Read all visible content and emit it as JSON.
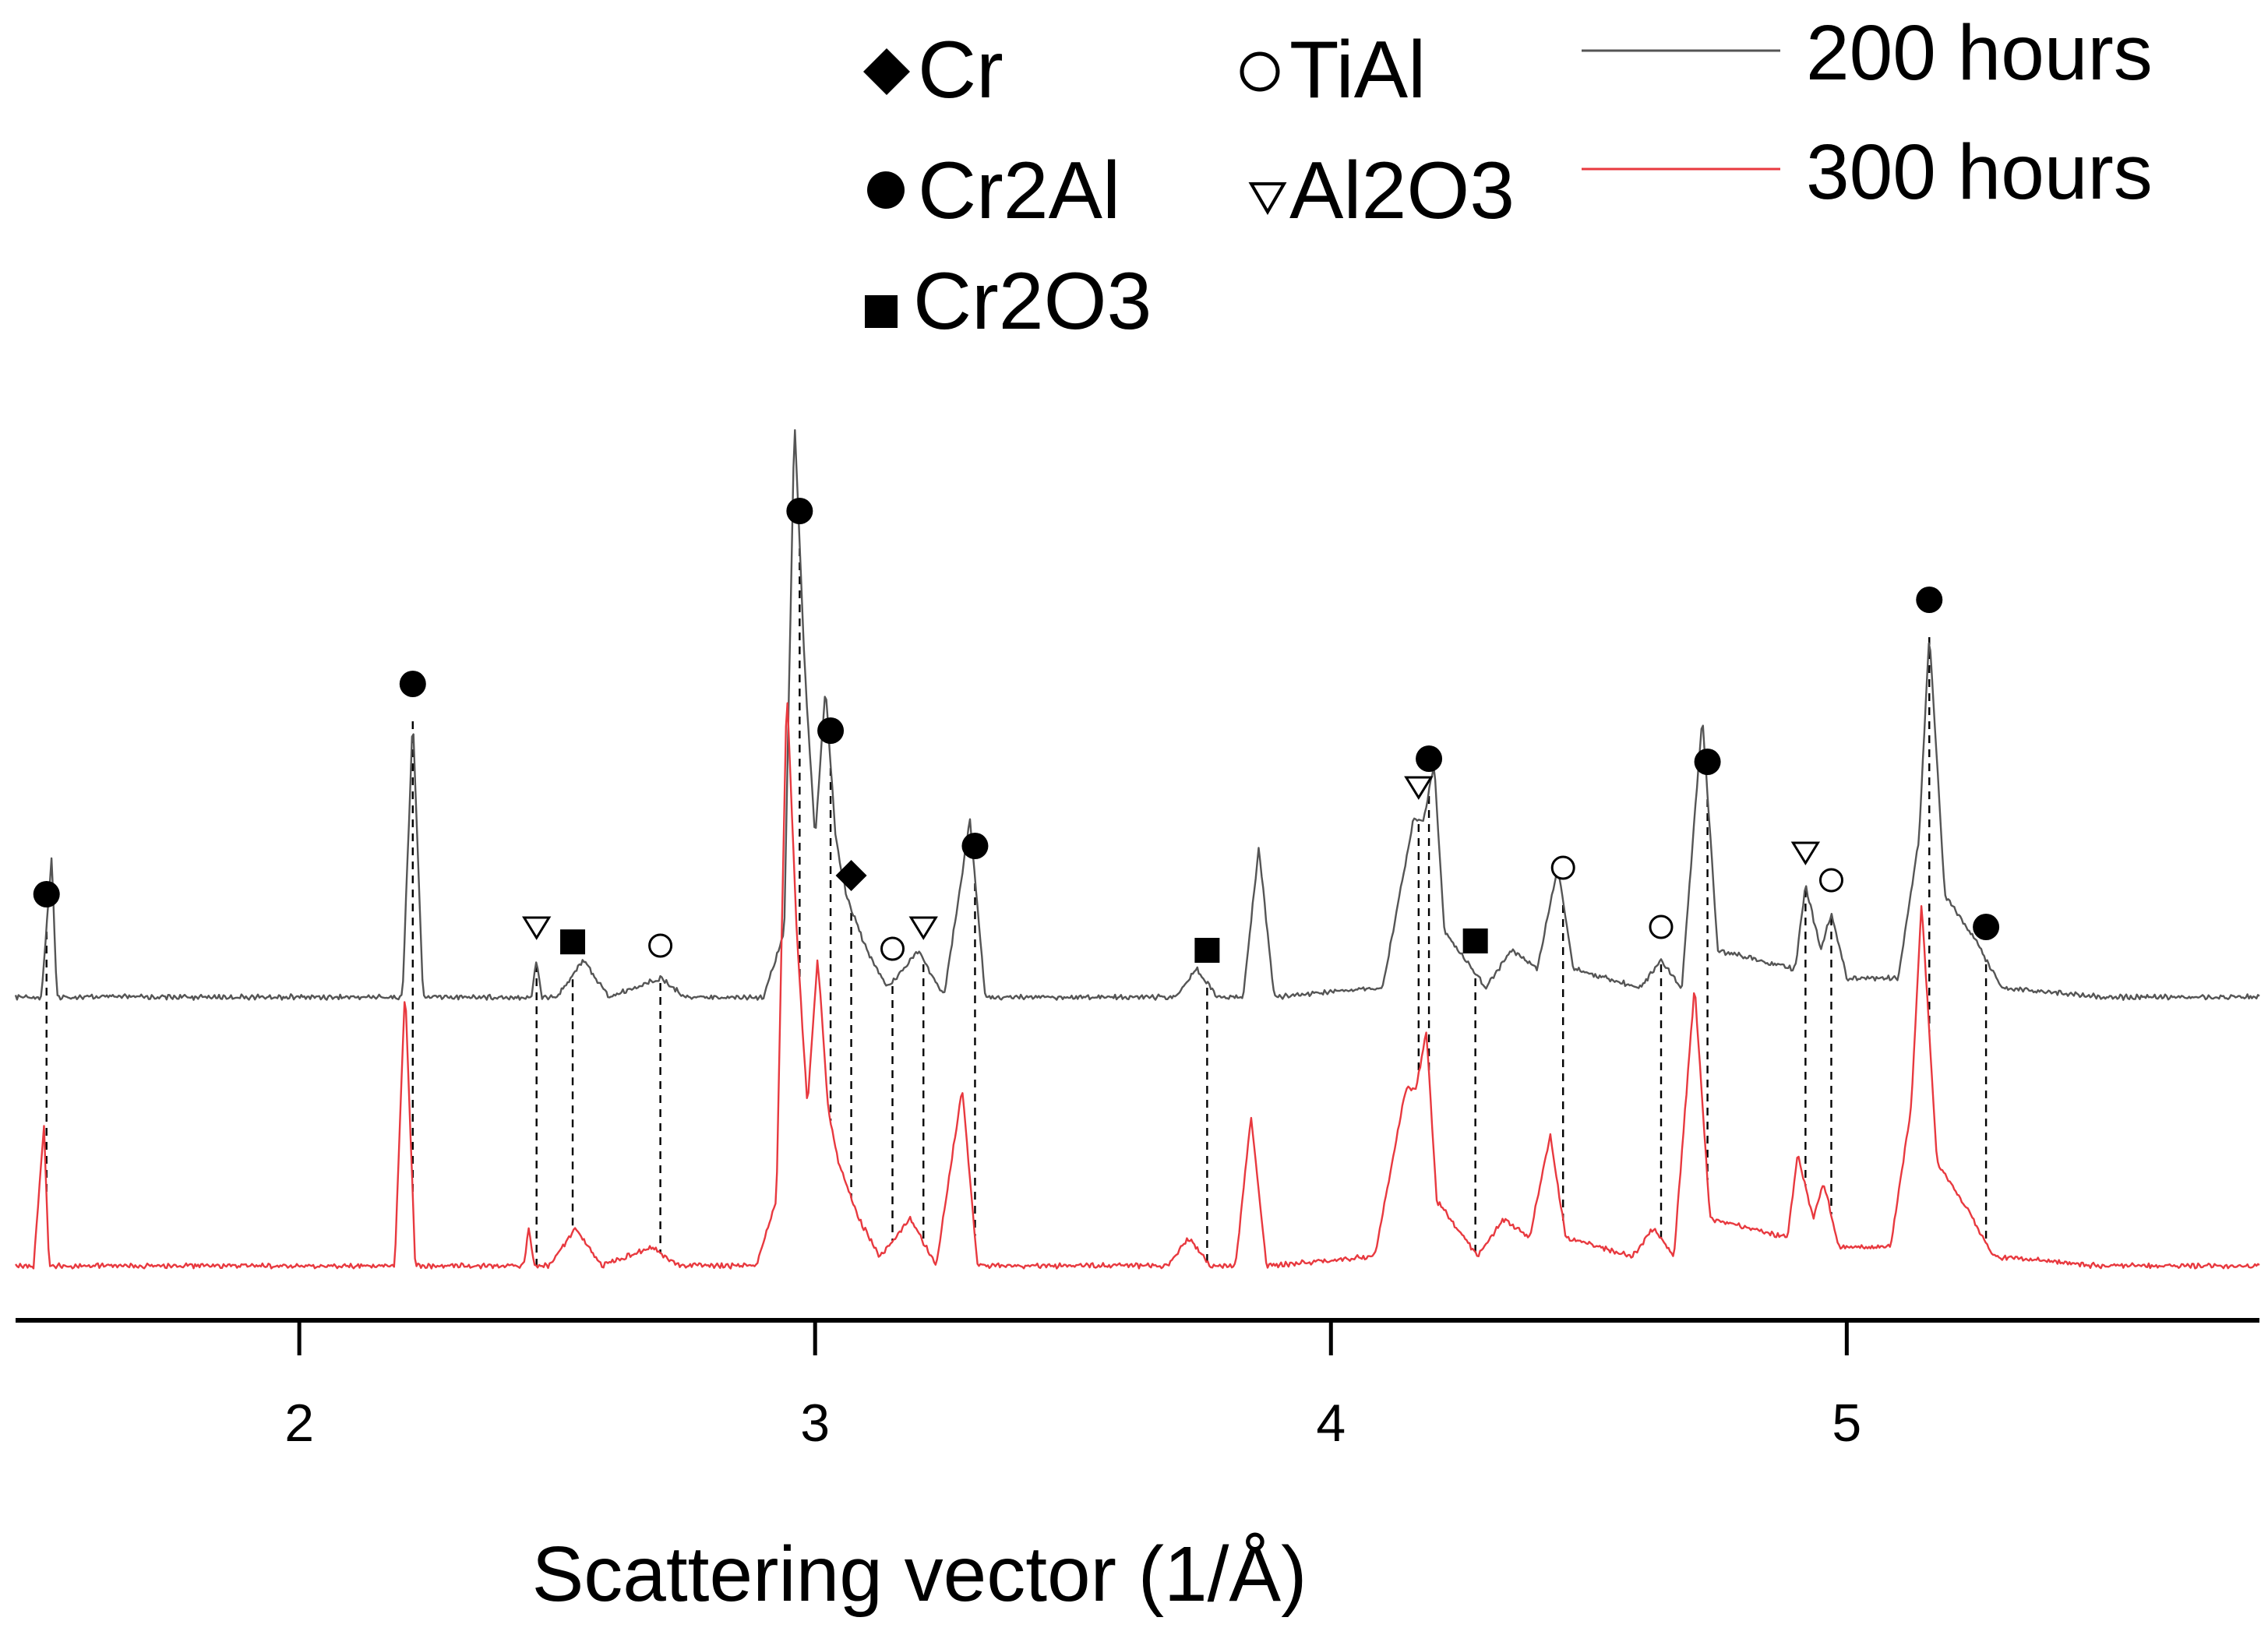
{
  "chart_data": {
    "type": "line",
    "title": "",
    "xlabel": "Scattering vector (1/Å)",
    "ylabel": "",
    "xlim": [
      1.45,
      5.8
    ],
    "xticks": [
      {
        "value": 2,
        "label": "2"
      },
      {
        "value": 3,
        "label": "3"
      },
      {
        "value": 4,
        "label": "4"
      },
      {
        "value": 5,
        "label": "5"
      }
    ],
    "y_axis_visible": false,
    "legend": {
      "placement": "top-right",
      "entries": [
        {
          "name": "200 hours",
          "color": "#555555"
        },
        {
          "name": "300 hours",
          "color": "#e8393f"
        }
      ]
    },
    "phase_legend": {
      "placement": "top-center",
      "entries": [
        {
          "symbol": "diamond",
          "symbol_name": "diamond-marker",
          "label": "Cr"
        },
        {
          "symbol": "circle-filled",
          "symbol_name": "filled-circle-marker",
          "label": "Cr2Al"
        },
        {
          "symbol": "square",
          "symbol_name": "square-marker",
          "label": "Cr2O3"
        },
        {
          "symbol": "circle-open",
          "symbol_name": "open-circle-marker",
          "label": "TiAl"
        },
        {
          "symbol": "triangle-down-open",
          "symbol_name": "open-triangle-marker",
          "label": "Al2O3"
        }
      ]
    },
    "series": [
      {
        "name": "200 hours",
        "color": "#555555",
        "baseline": 5,
        "points": [
          [
            1.45,
            5
          ],
          [
            1.5,
            5
          ],
          [
            1.52,
            20
          ],
          [
            1.53,
            5
          ],
          [
            1.6,
            5
          ],
          [
            2.1,
            5
          ],
          [
            2.2,
            5
          ],
          [
            2.22,
            35
          ],
          [
            2.24,
            5
          ],
          [
            2.4,
            5
          ],
          [
            2.45,
            5
          ],
          [
            2.46,
            9
          ],
          [
            2.47,
            5
          ],
          [
            2.5,
            5
          ],
          [
            2.55,
            9
          ],
          [
            2.6,
            5
          ],
          [
            2.7,
            7
          ],
          [
            2.75,
            5
          ],
          [
            2.9,
            5
          ],
          [
            2.94,
            12
          ],
          [
            2.96,
            67
          ],
          [
            2.98,
            40
          ],
          [
            3.0,
            22
          ],
          [
            3.02,
            38
          ],
          [
            3.04,
            22
          ],
          [
            3.06,
            16
          ],
          [
            3.1,
            10
          ],
          [
            3.14,
            6
          ],
          [
            3.2,
            10
          ],
          [
            3.25,
            5
          ],
          [
            3.3,
            24
          ],
          [
            3.33,
            5
          ],
          [
            3.7,
            5
          ],
          [
            3.74,
            8
          ],
          [
            3.78,
            5
          ],
          [
            3.83,
            5
          ],
          [
            3.86,
            21
          ],
          [
            3.89,
            5
          ],
          [
            4.1,
            6
          ],
          [
            4.16,
            24
          ],
          [
            4.18,
            24
          ],
          [
            4.2,
            30
          ],
          [
            4.22,
            12
          ],
          [
            4.3,
            6
          ],
          [
            4.35,
            10
          ],
          [
            4.4,
            8
          ],
          [
            4.44,
            19
          ],
          [
            4.47,
            8
          ],
          [
            4.6,
            6
          ],
          [
            4.64,
            9
          ],
          [
            4.68,
            6
          ],
          [
            4.72,
            35
          ],
          [
            4.75,
            10
          ],
          [
            4.9,
            8
          ],
          [
            4.92,
            17
          ],
          [
            4.95,
            10
          ],
          [
            4.97,
            14
          ],
          [
            5.0,
            7
          ],
          [
            5.1,
            7
          ],
          [
            5.14,
            22
          ],
          [
            5.16,
            44
          ],
          [
            5.19,
            16
          ],
          [
            5.25,
            11
          ],
          [
            5.3,
            6
          ],
          [
            5.5,
            5
          ],
          [
            5.6,
            5
          ],
          [
            5.8,
            5
          ]
        ]
      },
      {
        "name": "300 hours",
        "color": "#e8393f",
        "baseline": 5,
        "points": [
          [
            1.45,
            5
          ],
          [
            1.5,
            5
          ],
          [
            1.52,
            20
          ],
          [
            1.53,
            5
          ],
          [
            1.6,
            5
          ],
          [
            2.1,
            5
          ],
          [
            2.2,
            5
          ],
          [
            2.22,
            35
          ],
          [
            2.24,
            5
          ],
          [
            2.4,
            5
          ],
          [
            2.45,
            5
          ],
          [
            2.46,
            9
          ],
          [
            2.47,
            5
          ],
          [
            2.5,
            5
          ],
          [
            2.55,
            9
          ],
          [
            2.6,
            5
          ],
          [
            2.7,
            7
          ],
          [
            2.75,
            5
          ],
          [
            2.9,
            5
          ],
          [
            2.94,
            12
          ],
          [
            2.96,
            67
          ],
          [
            2.98,
            40
          ],
          [
            3.0,
            22
          ],
          [
            3.02,
            38
          ],
          [
            3.04,
            22
          ],
          [
            3.06,
            16
          ],
          [
            3.1,
            10
          ],
          [
            3.14,
            6
          ],
          [
            3.2,
            10
          ],
          [
            3.25,
            5
          ],
          [
            3.3,
            24
          ],
          [
            3.33,
            5
          ],
          [
            3.7,
            5
          ],
          [
            3.74,
            8
          ],
          [
            3.78,
            5
          ],
          [
            3.83,
            5
          ],
          [
            3.86,
            21
          ],
          [
            3.89,
            5
          ],
          [
            4.1,
            6
          ],
          [
            4.16,
            24
          ],
          [
            4.18,
            24
          ],
          [
            4.2,
            30
          ],
          [
            4.22,
            12
          ],
          [
            4.3,
            6
          ],
          [
            4.35,
            10
          ],
          [
            4.4,
            8
          ],
          [
            4.44,
            19
          ],
          [
            4.47,
            8
          ],
          [
            4.6,
            6
          ],
          [
            4.64,
            9
          ],
          [
            4.68,
            6
          ],
          [
            4.72,
            35
          ],
          [
            4.75,
            10
          ],
          [
            4.9,
            8
          ],
          [
            4.92,
            17
          ],
          [
            4.95,
            10
          ],
          [
            4.97,
            14
          ],
          [
            5.0,
            7
          ],
          [
            5.1,
            7
          ],
          [
            5.14,
            22
          ],
          [
            5.16,
            44
          ],
          [
            5.19,
            16
          ],
          [
            5.25,
            11
          ],
          [
            5.3,
            6
          ],
          [
            5.5,
            5
          ],
          [
            5.6,
            5
          ],
          [
            5.8,
            5
          ]
        ]
      }
    ],
    "peak_annotations": [
      {
        "x": 1.51,
        "phase": "Cr2Al",
        "symbol": "circle-filled",
        "series_height": 20
      },
      {
        "x": 2.22,
        "phase": "Cr2Al",
        "symbol": "circle-filled",
        "series_height": 35
      },
      {
        "x": 2.46,
        "phase": "Al2O3",
        "symbol": "triangle-down-open",
        "series_height": 9
      },
      {
        "x": 2.53,
        "phase": "Cr2O3",
        "symbol": "square",
        "series_height": 9
      },
      {
        "x": 2.7,
        "phase": "TiAl",
        "symbol": "circle-open",
        "series_height": 7
      },
      {
        "x": 2.97,
        "phase": "Cr2Al",
        "symbol": "circle-filled",
        "series_height": 67
      },
      {
        "x": 3.03,
        "phase": "Cr2Al",
        "symbol": "circle-filled",
        "series_height": 38
      },
      {
        "x": 3.07,
        "phase": "Cr",
        "symbol": "diamond",
        "series_height": 16
      },
      {
        "x": 3.15,
        "phase": "TiAl",
        "symbol": "circle-open",
        "series_height": 6
      },
      {
        "x": 3.21,
        "phase": "Al2O3",
        "symbol": "triangle-down-open",
        "series_height": 10
      },
      {
        "x": 3.31,
        "phase": "Cr2Al",
        "symbol": "circle-filled",
        "series_height": 24
      },
      {
        "x": 3.76,
        "phase": "Cr2O3",
        "symbol": "square",
        "series_height": 8
      },
      {
        "x": 4.17,
        "phase": "Al2O3",
        "symbol": "triangle-down-open",
        "series_height": 24
      },
      {
        "x": 4.19,
        "phase": "Cr2Al",
        "symbol": "circle-filled",
        "series_height": 30
      },
      {
        "x": 4.28,
        "phase": "Cr2O3",
        "symbol": "square",
        "series_height": 6
      },
      {
        "x": 4.45,
        "phase": "TiAl",
        "symbol": "circle-open",
        "series_height": 19
      },
      {
        "x": 4.64,
        "phase": "TiAl",
        "symbol": "circle-open",
        "series_height": 9
      },
      {
        "x": 4.73,
        "phase": "Cr2Al",
        "symbol": "circle-filled",
        "series_height": 35
      },
      {
        "x": 4.92,
        "phase": "Al2O3",
        "symbol": "triangle-down-open",
        "series_height": 17
      },
      {
        "x": 4.97,
        "phase": "TiAl",
        "symbol": "circle-open",
        "series_height": 14
      },
      {
        "x": 5.16,
        "phase": "Cr2Al",
        "symbol": "circle-filled",
        "series_height": 44
      },
      {
        "x": 5.27,
        "phase": "Cr2Al",
        "symbol": "circle-filled",
        "series_height": 11
      }
    ]
  }
}
